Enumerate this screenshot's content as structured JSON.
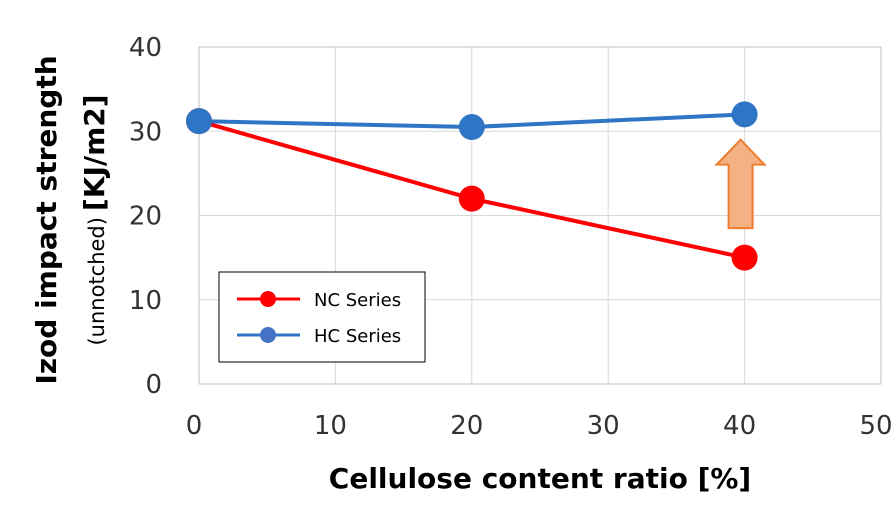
{
  "chart_data": {
    "type": "line",
    "xlabel": "Cellulose content ratio [%]",
    "ylabel_main": "Izod impact strength",
    "ylabel_sub": "(unnotched)",
    "ylabel_unit": "[KJ/m2]",
    "xlim": [
      0,
      50
    ],
    "ylim": [
      0,
      40
    ],
    "xticks": [
      0,
      10,
      20,
      30,
      40,
      50
    ],
    "yticks": [
      0,
      10,
      20,
      30,
      40
    ],
    "grid": true,
    "legend_position": "bottom-left",
    "series": [
      {
        "name": "NC Series",
        "color": "#ff0000",
        "x": [
          0,
          20,
          40
        ],
        "y": [
          31.2,
          22,
          15
        ]
      },
      {
        "name": "HC Series",
        "color": "#2e75c6",
        "x": [
          0,
          20,
          40
        ],
        "y": [
          31.2,
          30.5,
          32
        ]
      }
    ],
    "annotations": [
      {
        "type": "up-arrow",
        "x": 40,
        "y_from": 18.5,
        "y_to": 29,
        "fill": "#f4b183",
        "stroke": "#ed7d31"
      }
    ]
  }
}
